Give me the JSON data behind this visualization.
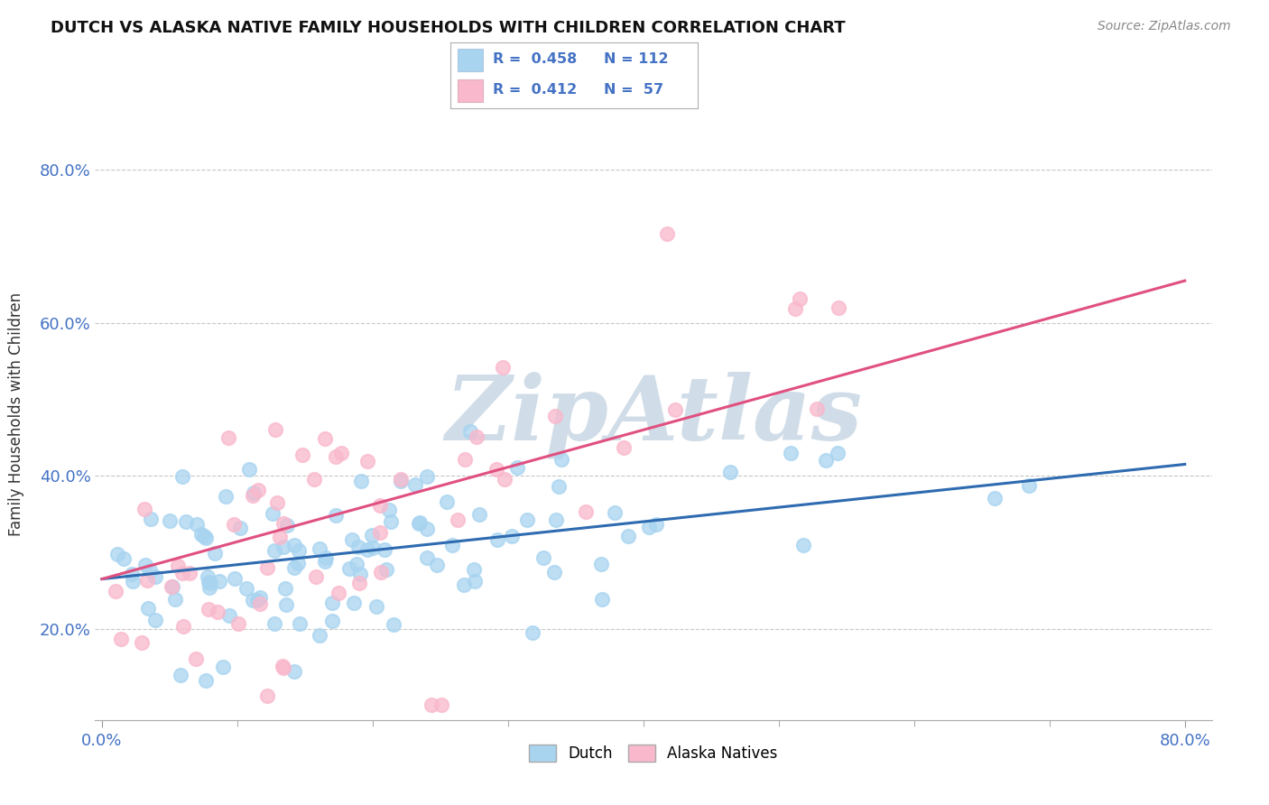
{
  "title": "DUTCH VS ALASKA NATIVE FAMILY HOUSEHOLDS WITH CHILDREN CORRELATION CHART",
  "source": "Source: ZipAtlas.com",
  "ylabel": "Family Households with Children",
  "xlim": [
    -0.005,
    0.82
  ],
  "ylim": [
    0.08,
    0.88
  ],
  "yticks": [
    0.2,
    0.4,
    0.6,
    0.8
  ],
  "ytick_labels": [
    "20.0%",
    "40.0%",
    "60.0%",
    "80.0%"
  ],
  "xtick_left": "0.0%",
  "xtick_right": "80.0%",
  "legend_r_dutch": "R = 0.458",
  "legend_n_dutch": "N = 112",
  "legend_r_alaska": "R = 0.412",
  "legend_n_alaska": "N = 57",
  "dutch_color": "#a8d4f0",
  "alaska_color": "#f9b8cc",
  "dutch_line_color": "#2e6bb0",
  "alaska_line_color": "#e05080",
  "background_color": "#ffffff",
  "watermark_text": "ZipAtlas",
  "watermark_color": "#d0dde8",
  "dutch_line_start_y": 0.265,
  "dutch_line_end_y": 0.415,
  "alaska_line_start_y": 0.265,
  "alaska_line_end_y": 0.655
}
